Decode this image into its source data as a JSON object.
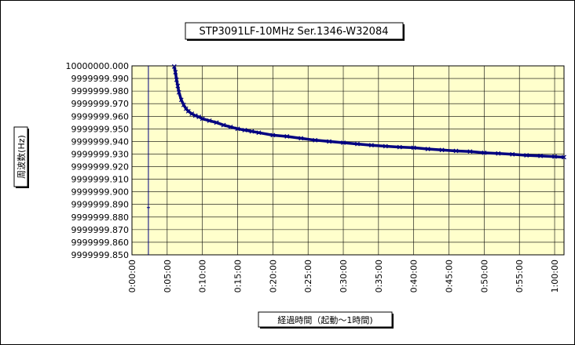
{
  "chart_data": {
    "type": "scatter",
    "title": "STP3091LF-10MHz  Ser.1346-W32084",
    "xlabel": "経過時間（起動〜1時間)",
    "ylabel": "周波数(Hz)",
    "x_ticks": [
      "0:00:00",
      "0:05:00",
      "0:10:00",
      "0:15:00",
      "0:20:00",
      "0:25:00",
      "0:30:00",
      "0:35:00",
      "0:40:00",
      "0:45:00",
      "0:50:00",
      "0:55:00",
      "1:00:00"
    ],
    "y_ticks": [
      "9999999.850",
      "9999999.860",
      "9999999.870",
      "9999999.880",
      "9999999.890",
      "9999999.900",
      "9999999.910",
      "9999999.920",
      "9999999.930",
      "9999999.940",
      "9999999.950",
      "9999999.960",
      "9999999.970",
      "9999999.980",
      "9999999.990",
      "10000000.000"
    ],
    "ylim": [
      9999999.85,
      10000000.0
    ],
    "xlim_seconds": [
      0,
      3680
    ],
    "grid": true,
    "plot_background": "#ffffcc",
    "series_color": "#000080",
    "outlier": {
      "x_seconds": 140,
      "y": 9999999.8875
    },
    "series": [
      {
        "x_seconds": [
          360,
          370,
          380,
          390,
          400,
          420,
          440,
          460,
          480,
          510,
          540,
          570,
          600,
          660,
          720,
          780,
          840,
          900,
          960,
          1020,
          1080,
          1200,
          1320,
          1440,
          1560,
          1680,
          1800,
          1920,
          2040,
          2160,
          2280,
          2400,
          2520,
          2640,
          2760,
          2880,
          3000,
          3120,
          3240,
          3360,
          3480,
          3600,
          3680
        ],
        "y": [
          9999999.9995,
          9999999.995,
          9999999.989,
          9999999.984,
          9999999.979,
          9999999.973,
          9999999.969,
          9999999.966,
          9999999.964,
          9999999.962,
          9999999.9605,
          9999999.9595,
          9999999.958,
          9999999.9565,
          9999999.955,
          9999999.953,
          9999999.9515,
          9999999.95,
          9999999.949,
          9999999.948,
          9999999.947,
          9999999.945,
          9999999.944,
          9999999.9425,
          9999999.941,
          9999999.94,
          9999999.939,
          9999999.938,
          9999999.937,
          9999999.9362,
          9999999.9355,
          9999999.935,
          9999999.934,
          9999999.9332,
          9999999.9325,
          9999999.932,
          9999999.931,
          9999999.9305,
          9999999.9298,
          9999999.929,
          9999999.9285,
          9999999.928,
          9999999.9275
        ]
      }
    ]
  }
}
